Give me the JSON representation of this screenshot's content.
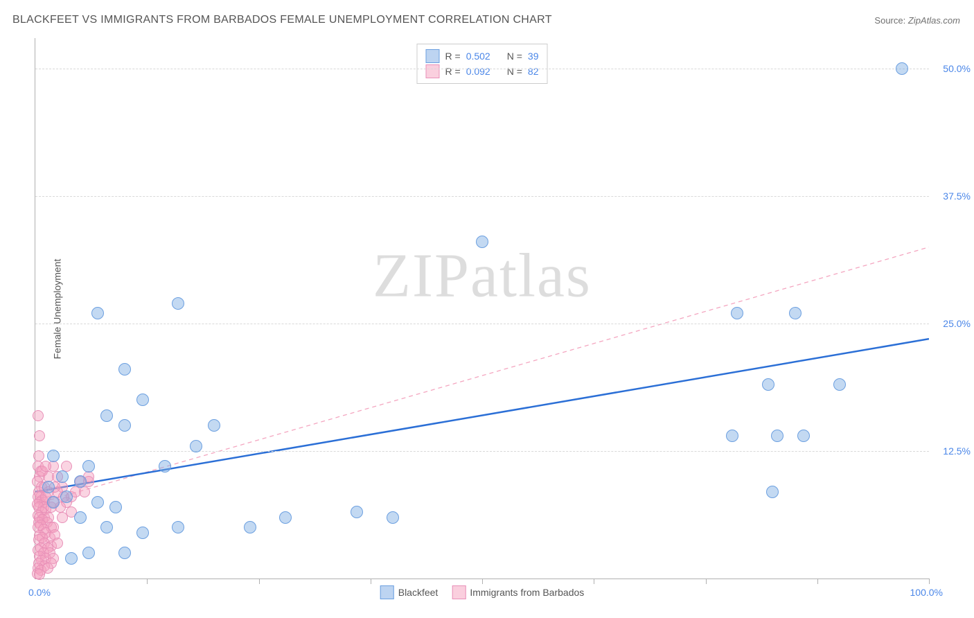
{
  "title": "BLACKFEET VS IMMIGRANTS FROM BARBADOS FEMALE UNEMPLOYMENT CORRELATION CHART",
  "source_label": "Source:",
  "source_value": "ZipAtlas.com",
  "yaxis_label": "Female Unemployment",
  "watermark_zip": "ZIP",
  "watermark_atlas": "atlas",
  "chart": {
    "type": "scatter",
    "xlim": [
      0,
      100
    ],
    "ylim": [
      0,
      53
    ],
    "x_tick_labels": {
      "min": "0.0%",
      "max": "100.0%"
    },
    "y_tick_labels": [
      "12.5%",
      "25.0%",
      "37.5%",
      "50.0%"
    ],
    "y_tick_values": [
      12.5,
      25.0,
      37.5,
      50.0
    ],
    "x_ticks_minor": [
      12.5,
      25,
      37.5,
      50,
      62.5,
      75,
      87.5,
      100
    ],
    "background_color": "#ffffff",
    "grid_color": "#d8d8d8",
    "axis_color": "#b0b0b0",
    "label_color": "#4a86e8",
    "label_fontsize": 14,
    "series": {
      "blue": {
        "name": "Blackfeet",
        "R": "0.502",
        "N": "39",
        "marker_fill": "rgba(123,170,227,0.45)",
        "marker_stroke": "#6b9fe0",
        "marker_size": 16,
        "trend": {
          "x1": 0,
          "y1": 8.5,
          "x2": 100,
          "y2": 23.5,
          "stroke": "#2b6fd6",
          "width": 2.5,
          "dash": "none"
        },
        "points": [
          [
            97,
            50
          ],
          [
            85,
            26
          ],
          [
            78.5,
            26
          ],
          [
            82,
            19
          ],
          [
            90,
            19
          ],
          [
            78,
            14
          ],
          [
            83,
            14
          ],
          [
            86,
            14
          ],
          [
            82.5,
            8.5
          ],
          [
            50,
            33
          ],
          [
            7,
            26
          ],
          [
            16,
            27
          ],
          [
            10,
            20.5
          ],
          [
            12,
            17.5
          ],
          [
            8,
            16
          ],
          [
            20,
            15
          ],
          [
            14.5,
            11
          ],
          [
            6,
            11
          ],
          [
            2,
            12
          ],
          [
            3,
            10
          ],
          [
            5,
            9.5
          ],
          [
            18,
            13
          ],
          [
            10,
            15
          ],
          [
            24,
            5
          ],
          [
            28,
            6
          ],
          [
            36,
            6.5
          ],
          [
            40,
            6
          ],
          [
            8,
            5
          ],
          [
            16,
            5
          ],
          [
            12,
            4.5
          ],
          [
            10,
            2.5
          ],
          [
            6,
            2.5
          ],
          [
            4,
            2
          ],
          [
            2,
            7.5
          ],
          [
            1.5,
            9
          ],
          [
            3.5,
            8
          ],
          [
            7,
            7.5
          ],
          [
            9,
            7
          ],
          [
            5,
            6
          ]
        ]
      },
      "pink": {
        "name": "Immigrants from Barbados",
        "R": "0.092",
        "N": "82",
        "marker_fill": "rgba(245,160,190,0.45)",
        "marker_stroke": "#e890b8",
        "marker_size": 14,
        "trend": {
          "x1": 0,
          "y1": 7.3,
          "x2": 100,
          "y2": 32.5,
          "stroke": "#f4a6c0",
          "width": 1.3,
          "dash": "6,5"
        },
        "points": [
          [
            0.3,
            16
          ],
          [
            0.5,
            14
          ],
          [
            0.4,
            12
          ],
          [
            0.3,
            11
          ],
          [
            0.6,
            10.5
          ],
          [
            0.5,
            10
          ],
          [
            0.2,
            9.5
          ],
          [
            0.7,
            9
          ],
          [
            0.4,
            8.5
          ],
          [
            0.6,
            8
          ],
          [
            0.3,
            8
          ],
          [
            0.8,
            7.7
          ],
          [
            0.5,
            7.5
          ],
          [
            1.0,
            7.5
          ],
          [
            0.2,
            7.3
          ],
          [
            0.9,
            7
          ],
          [
            0.4,
            7
          ],
          [
            1.2,
            6.8
          ],
          [
            0.7,
            6.5
          ],
          [
            0.3,
            6.2
          ],
          [
            1.0,
            6
          ],
          [
            0.5,
            6
          ],
          [
            1.5,
            6
          ],
          [
            0.8,
            5.8
          ],
          [
            0.4,
            5.5
          ],
          [
            1.3,
            5.5
          ],
          [
            0.6,
            5.2
          ],
          [
            1.8,
            5
          ],
          [
            0.3,
            5
          ],
          [
            0.9,
            4.8
          ],
          [
            2.0,
            5
          ],
          [
            1.2,
            4.5
          ],
          [
            0.5,
            4.2
          ],
          [
            1.6,
            4
          ],
          [
            0.8,
            4
          ],
          [
            2.2,
            4.3
          ],
          [
            0.4,
            3.8
          ],
          [
            1.0,
            3.5
          ],
          [
            1.8,
            3.2
          ],
          [
            0.6,
            3
          ],
          [
            1.4,
            3
          ],
          [
            2.5,
            3.5
          ],
          [
            0.3,
            2.8
          ],
          [
            0.9,
            2.5
          ],
          [
            1.6,
            2.5
          ],
          [
            0.5,
            2.2
          ],
          [
            1.2,
            2
          ],
          [
            2.0,
            2
          ],
          [
            0.7,
            1.8
          ],
          [
            0.4,
            1.5
          ],
          [
            1.8,
            1.5
          ],
          [
            1.0,
            1.2
          ],
          [
            0.3,
            1
          ],
          [
            0.6,
            0.8
          ],
          [
            1.4,
            1
          ],
          [
            0.2,
            0.5
          ],
          [
            0.5,
            0.4
          ],
          [
            4,
            8
          ],
          [
            3,
            9
          ],
          [
            5,
            9.5
          ],
          [
            6,
            10
          ],
          [
            2.5,
            8.5
          ],
          [
            3.5,
            7.5
          ],
          [
            4.5,
            8.5
          ],
          [
            2,
            11
          ],
          [
            1.5,
            10
          ],
          [
            2.2,
            9
          ],
          [
            3,
            6
          ],
          [
            4,
            6.5
          ],
          [
            2.8,
            7
          ],
          [
            3.2,
            8
          ],
          [
            5.5,
            8.5
          ],
          [
            1.2,
            8
          ],
          [
            1.8,
            7
          ],
          [
            1.0,
            9
          ],
          [
            2.5,
            10
          ],
          [
            3.5,
            11
          ],
          [
            1.5,
            8.5
          ],
          [
            0.8,
            10.5
          ],
          [
            1.2,
            11
          ],
          [
            2,
            7.5
          ],
          [
            6,
            9.5
          ]
        ]
      }
    }
  },
  "legend_top": {
    "r_label": "R =",
    "n_label": "N ="
  },
  "legend_bottom": {
    "items": [
      "Blackfeet",
      "Immigrants from Barbados"
    ]
  }
}
